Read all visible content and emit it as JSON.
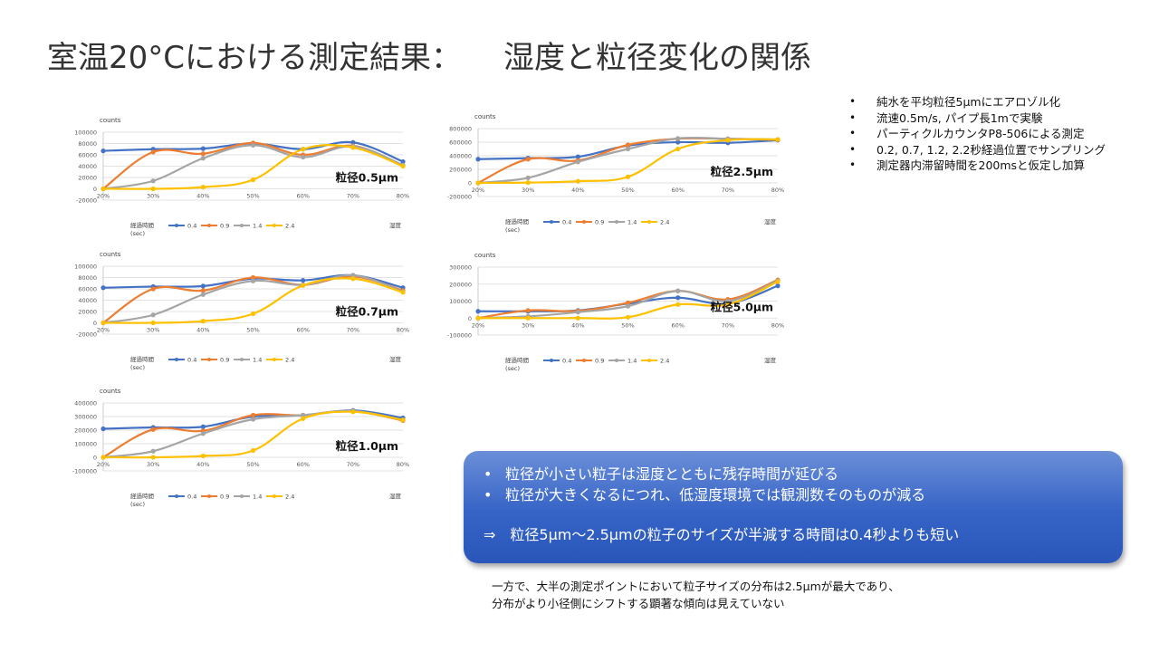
{
  "title": {
    "part1": "室温20°Cにおける測定結果：",
    "part2": "湿度と粒径変化の関係"
  },
  "bullets": [
    "純水を平均粒径5μmにエアロゾル化",
    "流速0.5m/s, パイプ長1mで実験",
    "パーティクルカウンタP8-506による測定",
    "0.2, 0.7, 1.2, 2.2秒経過位置でサンプリング",
    "測定器内滞留時間を200msと仮定し加算"
  ],
  "summary": {
    "items": [
      "粒径が小さい粒子は湿度とともに残存時間が延びる",
      "粒径が大きくなるにつれ、低湿度環境では観測数そのものが減る"
    ],
    "conclusion": "⇒　粒径5μm〜2.5μmの粒子のサイズが半減する時間は0.4秒よりも短い"
  },
  "footnote": [
    "一方で、大半の測定ポイントにおいて粒子サイズの分布は2.5μmが最大であり、",
    "分布がより小径側にシフトする顕著な傾向は見えていない"
  ],
  "colors": {
    "s04": "#4472c4",
    "s09": "#ed7d31",
    "s14": "#a5a5a5",
    "s24": "#ffc000"
  },
  "chart_data": [
    {
      "type": "line",
      "title": "粒径0.5μm",
      "ylabel": "counts",
      "xlabel": "湿度",
      "legend_title": "経過時間 (sec)",
      "legend_position": "bottom",
      "grid": true,
      "categories": [
        "20%",
        "30%",
        "40%",
        "50%",
        "60%",
        "70%",
        "80%"
      ],
      "ylim": [
        -20000,
        100000
      ],
      "yticks": [
        -20000,
        0,
        20000,
        40000,
        60000,
        80000,
        100000
      ],
      "series": [
        {
          "name": "0.4",
          "values": [
            67000,
            70000,
            71000,
            80000,
            70000,
            82000,
            48000
          ]
        },
        {
          "name": "0.9",
          "values": [
            0,
            65000,
            62000,
            81000,
            60000,
            76000,
            41000
          ]
        },
        {
          "name": "1.4",
          "values": [
            0,
            14000,
            54000,
            77000,
            56000,
            75000,
            42000
          ]
        },
        {
          "name": "2.4",
          "values": [
            0,
            0,
            3000,
            16000,
            70000,
            73000,
            40000
          ]
        }
      ]
    },
    {
      "type": "line",
      "title": "粒径2.5μm",
      "ylabel": "counts",
      "xlabel": "湿度",
      "legend_title": "経過時間 (sec)",
      "legend_position": "bottom",
      "grid": true,
      "categories": [
        "20%",
        "30%",
        "40%",
        "50%",
        "60%",
        "70%",
        "80%"
      ],
      "ylim": [
        -200000,
        800000
      ],
      "yticks": [
        -200000,
        0,
        200000,
        400000,
        600000,
        800000
      ],
      "series": [
        {
          "name": "0.4",
          "values": [
            350000,
            365000,
            385000,
            550000,
            600000,
            590000,
            630000
          ]
        },
        {
          "name": "0.9",
          "values": [
            0,
            350000,
            330000,
            560000,
            650000,
            650000,
            635000
          ]
        },
        {
          "name": "1.4",
          "values": [
            0,
            75000,
            310000,
            500000,
            655000,
            650000,
            640000
          ]
        },
        {
          "name": "2.4",
          "values": [
            0,
            5000,
            25000,
            90000,
            500000,
            630000,
            640000
          ]
        }
      ]
    },
    {
      "type": "line",
      "title": "粒径0.7μm",
      "ylabel": "counts",
      "xlabel": "湿度",
      "legend_title": "経過時間 (sec)",
      "legend_position": "bottom",
      "grid": true,
      "categories": [
        "20%",
        "30%",
        "40%",
        "50%",
        "60%",
        "70%",
        "80%"
      ],
      "ylim": [
        -20000,
        100000
      ],
      "yticks": [
        -20000,
        0,
        20000,
        40000,
        60000,
        80000,
        100000
      ],
      "series": [
        {
          "name": "0.4",
          "values": [
            62000,
            64000,
            65000,
            78000,
            75000,
            84000,
            62000
          ]
        },
        {
          "name": "0.9",
          "values": [
            0,
            60000,
            57000,
            80000,
            67000,
            82000,
            57000
          ]
        },
        {
          "name": "1.4",
          "values": [
            0,
            14000,
            50000,
            74000,
            67000,
            84000,
            55000
          ]
        },
        {
          "name": "2.4",
          "values": [
            0,
            0,
            3000,
            16000,
            66000,
            78000,
            54000
          ]
        }
      ]
    },
    {
      "type": "line",
      "title": "粒径5.0μm",
      "ylabel": "counts",
      "xlabel": "湿度",
      "legend_title": "経過時間 (sec)",
      "legend_position": "bottom",
      "grid": true,
      "categories": [
        "20%",
        "30%",
        "40%",
        "50%",
        "60%",
        "70%",
        "80%"
      ],
      "ylim": [
        -100000,
        300000
      ],
      "yticks": [
        -100000,
        0,
        100000,
        200000,
        300000
      ],
      "series": [
        {
          "name": "0.4",
          "values": [
            40000,
            40000,
            45000,
            85000,
            120000,
            85000,
            190000
          ]
        },
        {
          "name": "0.9",
          "values": [
            0,
            45000,
            42000,
            90000,
            160000,
            110000,
            225000
          ]
        },
        {
          "name": "1.4",
          "values": [
            0,
            10000,
            35000,
            70000,
            160000,
            100000,
            220000
          ]
        },
        {
          "name": "2.4",
          "values": [
            0,
            0,
            0,
            5000,
            80000,
            80000,
            215000
          ]
        }
      ]
    },
    {
      "type": "line",
      "title": "粒径1.0μm",
      "ylabel": "counts",
      "xlabel": "湿度",
      "legend_title": "経過時間 (sec)",
      "legend_position": "bottom",
      "grid": true,
      "categories": [
        "20%",
        "30%",
        "40%",
        "50%",
        "60%",
        "70%",
        "80%"
      ],
      "ylim": [
        -100000,
        400000
      ],
      "yticks": [
        -100000,
        0,
        100000,
        200000,
        300000,
        400000
      ],
      "series": [
        {
          "name": "0.4",
          "values": [
            210000,
            220000,
            225000,
            300000,
            310000,
            345000,
            290000
          ]
        },
        {
          "name": "0.9",
          "values": [
            0,
            205000,
            195000,
            310000,
            310000,
            340000,
            270000
          ]
        },
        {
          "name": "1.4",
          "values": [
            0,
            45000,
            175000,
            280000,
            310000,
            340000,
            275000
          ]
        },
        {
          "name": "2.4",
          "values": [
            0,
            0,
            10000,
            50000,
            285000,
            335000,
            275000
          ]
        }
      ]
    }
  ]
}
